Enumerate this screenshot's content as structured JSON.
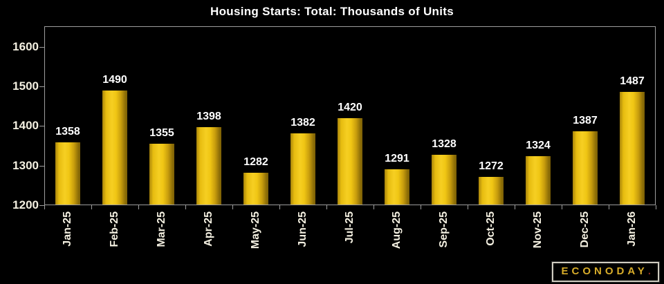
{
  "page": {
    "background": "#000000"
  },
  "header": {
    "title": "Housing Starts: Total: Thousands of Units"
  },
  "chart_data": {
    "type": "bar",
    "categories": [
      "Jan-25",
      "Feb-25",
      "Mar-25",
      "Apr-25",
      "May-25",
      "Jun-25",
      "Jul-25",
      "Aug-25",
      "Sep-25",
      "Oct-25",
      "Nov-25",
      "Dec-25",
      "Jan-26"
    ],
    "values": [
      1358,
      1490,
      1355,
      1398,
      1282,
      1382,
      1420,
      1291,
      1328,
      1272,
      1324,
      1387,
      1487
    ],
    "title": "Housing Starts: Total: Thousands of Units",
    "xlabel": "",
    "ylabel": "",
    "ylim": [
      1200,
      1652
    ],
    "yticks": [
      1200,
      1300,
      1400,
      1500,
      1600
    ],
    "grid": false,
    "legend": null,
    "value_labels": true,
    "bar_color": "#f0c614",
    "background": "#000000",
    "axis_color": "#9e9e9e"
  },
  "branding": {
    "name": "ECONODAY",
    "suffix": ".",
    "text_color": "#d8ad2a",
    "suffix_color": "#8a2a20"
  },
  "colors": {
    "background": "#000000",
    "axis": "#9e9e9e",
    "tick_label": "#f4f0e1",
    "value_label": "#ffffff",
    "title": "#ffffff"
  }
}
